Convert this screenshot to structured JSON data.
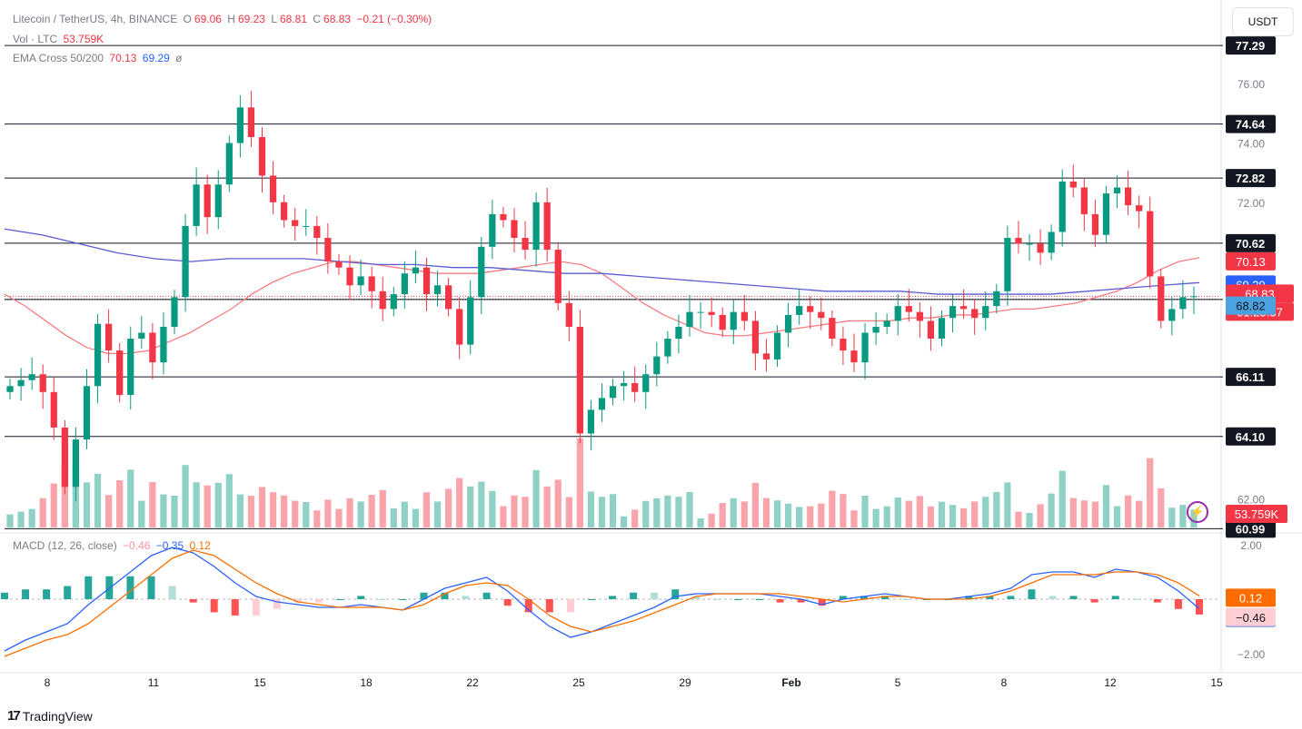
{
  "header": {
    "symbol": "Litecoin / TetherUS, 4h, BINANCE",
    "o_label": "O",
    "o_value": "69.06",
    "h_label": "H",
    "h_value": "69.23",
    "l_label": "L",
    "l_value": "68.81",
    "c_label": "C",
    "c_value": "68.83",
    "change": "−0.21 (−0.30%)",
    "vol_label": "Vol · LTC",
    "vol_value": "53.759K",
    "ema_label": "EMA Cross 50/200",
    "ema50_value": "70.13",
    "ema200_value": "69.29",
    "ema_extra": "ø",
    "macd_label": "MACD (12, 26, close)",
    "macd_hist": "−0.46",
    "macd_line": "−0.35",
    "macd_signal": "0.12"
  },
  "currency_button": "USDT",
  "brand": "TradingView",
  "colors": {
    "up": "#089981",
    "down": "#f23645",
    "ema50": "#f77c80",
    "ema200": "#5b5bd6",
    "macd": "#2962ff",
    "signal": "#ff6d00",
    "level_line": "#131722"
  },
  "chart_data": {
    "type": "candlestick",
    "title": "Litecoin / TetherUS, 4h, BINANCE",
    "price_axis_ticks": [
      "76.00",
      "74.00",
      "72.00",
      "62.00"
    ],
    "price_ylim": [
      61.0,
      77.6
    ],
    "time_axis_labels": [
      "8",
      "11",
      "15",
      "18",
      "22",
      "25",
      "29",
      "Feb",
      "5",
      "8",
      "12",
      "15"
    ],
    "horizontal_levels": [
      77.29,
      74.64,
      72.82,
      70.62,
      68.72,
      66.11,
      64.1,
      60.99
    ],
    "level_labels": [
      "77.29",
      "74.64",
      "72.82",
      "70.62",
      "68.72",
      "66.11",
      "64.10",
      "60.99"
    ],
    "price_labels": [
      {
        "text": "70.13",
        "series": "EMA 50",
        "value": 70.13
      },
      {
        "text": "69.29",
        "series": "EMA 200",
        "value": 69.29
      },
      {
        "text": "68.83",
        "series": "Last price",
        "value": 68.83
      },
      {
        "text": "01:25:37",
        "series": "Countdown"
      },
      {
        "text": "68.82",
        "series": "Bid",
        "value": 68.82
      },
      {
        "text": "53.759K",
        "series": "Volume"
      }
    ],
    "ohlc_path_close": [
      65.8,
      66.0,
      66.2,
      65.6,
      64.4,
      62.4,
      64.0,
      65.8,
      67.9,
      67.0,
      65.5,
      67.4,
      67.6,
      66.6,
      67.8,
      68.8,
      71.2,
      72.6,
      71.5,
      72.6,
      74.0,
      75.2,
      74.2,
      72.9,
      72.0,
      71.4,
      71.2,
      71.2,
      70.8,
      70.0,
      69.8,
      69.2,
      69.5,
      69.0,
      68.4,
      68.9,
      69.6,
      69.8,
      68.9,
      69.2,
      68.4,
      67.2,
      68.8,
      70.5,
      71.6,
      71.4,
      70.8,
      70.4,
      72.0,
      70.4,
      68.6,
      67.8,
      64.2,
      65.0,
      65.4,
      65.8,
      65.9,
      65.6,
      66.2,
      66.8,
      67.4,
      67.8,
      68.3,
      68.3,
      68.2,
      67.7,
      68.3,
      68.0,
      66.9,
      66.7,
      67.6,
      68.2,
      68.5,
      68.3,
      68.1,
      67.4,
      67.0,
      66.6,
      67.6,
      67.8,
      68.0,
      68.5,
      68.3,
      68.0,
      67.4,
      68.1,
      68.5,
      68.4,
      68.1,
      68.5,
      69.0,
      70.8,
      70.6,
      70.6,
      70.3,
      71.0,
      72.7,
      72.5,
      71.6,
      70.9,
      72.3,
      72.5,
      71.9,
      71.7,
      69.5,
      68.0,
      68.4,
      68.8,
      68.83
    ],
    "volume_label": "Vol · LTC",
    "volume_last": "53.759K",
    "ema50": [
      68.9,
      68.5,
      68.0,
      67.5,
      67.1,
      66.9,
      66.9,
      67.0,
      67.3,
      67.6,
      68.0,
      68.4,
      68.9,
      69.3,
      69.6,
      69.8,
      70.0,
      70.0,
      69.9,
      69.8,
      69.7,
      69.6,
      69.6,
      69.6,
      69.7,
      69.8,
      69.9,
      70.0,
      69.9,
      69.6,
      69.1,
      68.6,
      68.2,
      67.9,
      67.6,
      67.5,
      67.5,
      67.6,
      67.7,
      67.8,
      67.9,
      68.0,
      68.0,
      68.0,
      68.1,
      68.1,
      68.2,
      68.2,
      68.3,
      68.4,
      68.4,
      68.5,
      68.6,
      68.8,
      69.0,
      69.3,
      69.7,
      70.0,
      70.13
    ],
    "ema200": [
      71.1,
      70.9,
      70.6,
      70.3,
      70.1,
      70.0,
      70.1,
      70.1,
      70.1,
      70.0,
      69.9,
      69.9,
      69.8,
      69.8,
      69.7,
      69.6,
      69.6,
      69.5,
      69.4,
      69.3,
      69.2,
      69.1,
      69.0,
      69.0,
      69.0,
      68.9,
      68.9,
      68.9,
      68.9,
      69.0,
      69.1,
      69.2,
      69.29
    ],
    "macd": {
      "label": "MACD (12, 26, close)",
      "axis_ticks": [
        "2.00",
        "−2.00"
      ],
      "ylim": [
        -2.6,
        2.4
      ],
      "histogram_last": -0.46,
      "macd_last": -0.35,
      "signal_last": 0.12,
      "macd_line": [
        -1.9,
        -1.5,
        -1.2,
        -0.9,
        -0.2,
        0.4,
        1.0,
        1.6,
        1.9,
        1.7,
        1.2,
        0.6,
        0.1,
        -0.1,
        -0.2,
        -0.3,
        -0.3,
        -0.2,
        -0.3,
        -0.4,
        0.0,
        0.4,
        0.6,
        0.8,
        0.3,
        -0.4,
        -1.0,
        -1.4,
        -1.2,
        -0.9,
        -0.6,
        -0.3,
        0.1,
        0.2,
        0.2,
        0.2,
        0.2,
        0.1,
        0.0,
        -0.2,
        0.0,
        0.1,
        0.2,
        0.1,
        0.0,
        0.0,
        0.1,
        0.2,
        0.4,
        0.9,
        1.0,
        1.0,
        0.8,
        1.1,
        1.0,
        0.8,
        0.3,
        -0.35
      ],
      "signal_line": [
        -2.1,
        -1.8,
        -1.5,
        -1.3,
        -0.9,
        -0.3,
        0.3,
        0.9,
        1.5,
        1.8,
        1.6,
        1.1,
        0.6,
        0.2,
        -0.1,
        -0.2,
        -0.3,
        -0.3,
        -0.3,
        -0.4,
        -0.2,
        0.2,
        0.5,
        0.6,
        0.5,
        0.0,
        -0.6,
        -1.0,
        -1.2,
        -1.0,
        -0.8,
        -0.5,
        -0.2,
        0.1,
        0.2,
        0.2,
        0.2,
        0.2,
        0.1,
        0.0,
        -0.1,
        0.0,
        0.1,
        0.1,
        0.0,
        0.0,
        0.0,
        0.1,
        0.3,
        0.6,
        0.9,
        0.9,
        0.9,
        1.0,
        1.0,
        0.9,
        0.6,
        0.12
      ]
    }
  }
}
